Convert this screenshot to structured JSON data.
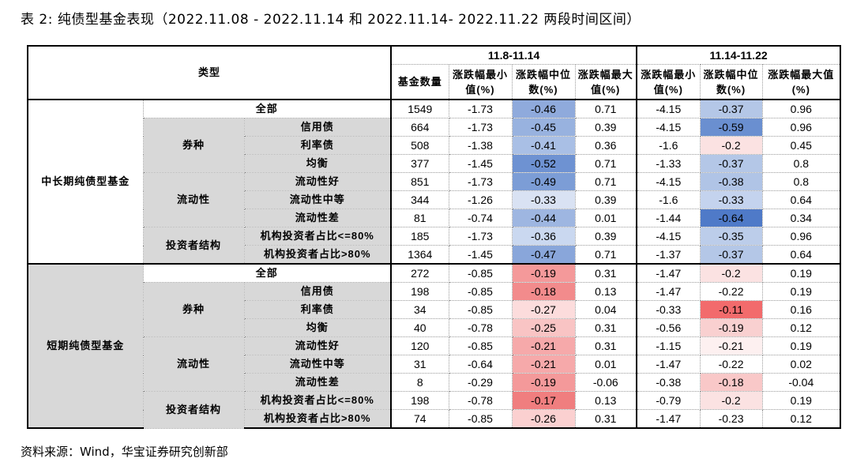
{
  "caption": "表 2:  纯债型基金表现（2022.11.08 - 2022.11.14 和 2022.11.14- 2022.11.22 两段时间区间）",
  "source": "资料来源：Wind，华宝证券研究创新部",
  "header": {
    "type_label": "类型",
    "period1": "11.8-11.14",
    "period2": "11.14-11.22",
    "count": "基金数量",
    "min1": "涨跌幅最小值(%)",
    "med1": "涨跌幅中位数(%)",
    "max1": "涨跌幅最大值(%)",
    "min2": "涨跌幅最小值(%)",
    "med2": "涨跌幅中位数(%)",
    "max2": "涨跌幅最大值(%)"
  },
  "sections": [
    {
      "name": "中长期纯债型基金",
      "rows": [
        {
          "group": "",
          "sub": "全部",
          "vals": [
            "1549",
            "-1.73",
            "-0.46",
            "0.71",
            "-4.15",
            "-0.37",
            "0.96"
          ],
          "c1": "#8faadc",
          "c2": "#b4c7e7"
        },
        {
          "group": "券种",
          "sub": "信用债",
          "vals": [
            "664",
            "-1.73",
            "-0.45",
            "0.39",
            "-4.15",
            "-0.59",
            "0.96"
          ],
          "c1": "#98b2df",
          "c2": "#6a8fd0"
        },
        {
          "group": "券种",
          "sub": "利率债",
          "vals": [
            "508",
            "-1.38",
            "-0.41",
            "0.36",
            "-1.6",
            "-0.2",
            "0.45"
          ],
          "c1": "#a9bfe5",
          "c2": "#fbe2e2"
        },
        {
          "group": "券种",
          "sub": "均衡",
          "vals": [
            "377",
            "-1.45",
            "-0.52",
            "0.71",
            "-1.33",
            "-0.37",
            "0.8"
          ],
          "c1": "#6e92d2",
          "c2": "#b4c7e7"
        },
        {
          "group": "流动性",
          "sub": "流动性好",
          "vals": [
            "851",
            "-1.73",
            "-0.49",
            "0.71",
            "-4.15",
            "-0.38",
            "0.8"
          ],
          "c1": "#7c9dd6",
          "c2": "#b0c4e6"
        },
        {
          "group": "流动性",
          "sub": "流动性中等",
          "vals": [
            "344",
            "-1.26",
            "-0.33",
            "0.39",
            "-1.6",
            "-0.33",
            "0.64"
          ],
          "c1": "#d9e2f3",
          "c2": "#c4d3ee"
        },
        {
          "group": "流动性",
          "sub": "流动性差",
          "vals": [
            "81",
            "-0.74",
            "-0.44",
            "0.01",
            "-1.44",
            "-0.64",
            "0.34"
          ],
          "c1": "#9eb6e1",
          "c2": "#4f7ac8"
        },
        {
          "group": "投资者结构",
          "sub": "机构投资者占比<=80%",
          "vals": [
            "185",
            "-1.73",
            "-0.36",
            "0.39",
            "-4.15",
            "-0.35",
            "0.96"
          ],
          "c1": "#cad8f0",
          "c2": "#bccdea"
        },
        {
          "group": "投资者结构",
          "sub": "机构投资者占比>80%",
          "vals": [
            "1364",
            "-1.45",
            "-0.47",
            "0.71",
            "-1.37",
            "-0.37",
            "0.64"
          ],
          "c1": "#89a6da",
          "c2": "#b4c7e7"
        }
      ]
    },
    {
      "name": "短期纯债型基金",
      "rows": [
        {
          "group": "",
          "sub": "全部",
          "vals": [
            "272",
            "-0.85",
            "-0.19",
            "0.31",
            "-1.47",
            "-0.2",
            "0.19"
          ],
          "c1": "#f4999a",
          "c2": "#fbe2e2"
        },
        {
          "group": "券种",
          "sub": "信用债",
          "vals": [
            "198",
            "-0.85",
            "-0.18",
            "0.13",
            "-1.47",
            "-0.22",
            "0.19"
          ],
          "c1": "#f28b8c",
          "c2": "#ffffff"
        },
        {
          "group": "券种",
          "sub": "利率债",
          "vals": [
            "34",
            "-0.85",
            "-0.27",
            "0.04",
            "-0.33",
            "-0.11",
            "0.16"
          ],
          "c1": "#fcdcdc",
          "c2": "#f26b6c"
        },
        {
          "group": "券种",
          "sub": "均衡",
          "vals": [
            "40",
            "-0.78",
            "-0.25",
            "0.31",
            "-0.56",
            "-0.19",
            "0.12"
          ],
          "c1": "#f9c4c4",
          "c2": "#f9d0d0"
        },
        {
          "group": "流动性",
          "sub": "流动性好",
          "vals": [
            "120",
            "-0.85",
            "-0.21",
            "0.31",
            "-1.15",
            "-0.21",
            "0.19"
          ],
          "c1": "#f6a9aa",
          "c2": "#fdf0f0"
        },
        {
          "group": "流动性",
          "sub": "流动性中等",
          "vals": [
            "31",
            "-0.64",
            "-0.21",
            "0.01",
            "-1.47",
            "-0.22",
            "0.02"
          ],
          "c1": "#f6a9aa",
          "c2": "#ffffff"
        },
        {
          "group": "流动性",
          "sub": "流动性差",
          "vals": [
            "8",
            "-0.29",
            "-0.19",
            "-0.06",
            "-0.38",
            "-0.18",
            "-0.04"
          ],
          "c1": "#f4999a",
          "c2": "#f9c8c8"
        },
        {
          "group": "投资者结构",
          "sub": "机构投资者占比<=80%",
          "vals": [
            "198",
            "-0.78",
            "-0.17",
            "0.13",
            "-0.79",
            "-0.2",
            "0.19"
          ],
          "c1": "#f07e7f",
          "c2": "#fbe2e2"
        },
        {
          "group": "投资者结构",
          "sub": "机构投资者占比>80%",
          "vals": [
            "74",
            "-0.85",
            "-0.26",
            "0.31",
            "-1.47",
            "-0.23",
            "0.12"
          ],
          "c1": "#fbd0d0",
          "c2": "#ffffff"
        }
      ]
    }
  ]
}
